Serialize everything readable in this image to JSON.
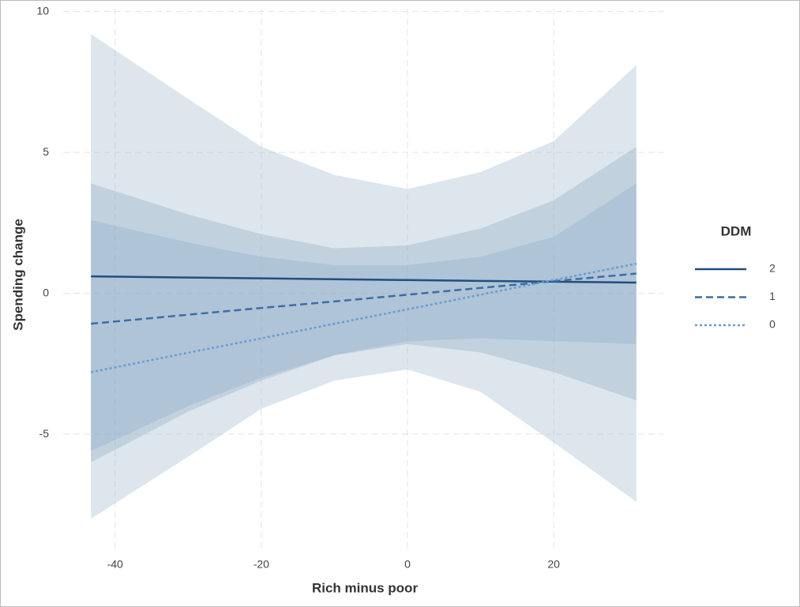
{
  "chart_data": {
    "type": "line",
    "x_label": "Rich minus poor",
    "y_label": "Spending change",
    "legend_title": "DDM",
    "legend_position": "right",
    "grid": true,
    "x": [
      -43.3,
      -30,
      -20,
      -10,
      0,
      10,
      20,
      31.3
    ],
    "xlim": [
      -47.1,
      35
    ],
    "ylim": [
      -9.2,
      10.1
    ],
    "xticks": [
      -40,
      -20,
      0,
      20
    ],
    "yticks": [
      -5,
      0,
      5,
      10
    ],
    "series": [
      {
        "name": "2",
        "color": "#1f4f80",
        "linetype": "solid",
        "ribbon_color": "#7fa6cc",
        "values": [
          0.6,
          0.56,
          0.53,
          0.5,
          0.47,
          0.44,
          0.41,
          0.38
        ],
        "upper": [
          2.6,
          1.8,
          1.3,
          1.0,
          1.0,
          1.3,
          2.0,
          3.9
        ],
        "lower": [
          -5.6,
          -4.0,
          -3.0,
          -2.2,
          -1.7,
          -1.6,
          -1.7,
          -1.8
        ]
      },
      {
        "name": "1",
        "color": "#3a6ea5",
        "linetype": "dashed",
        "ribbon_color": "#8aa3bf",
        "values": [
          -1.08,
          -0.76,
          -0.52,
          -0.29,
          -0.05,
          0.19,
          0.43,
          0.7
        ],
        "upper": [
          3.9,
          2.8,
          2.1,
          1.6,
          1.7,
          2.3,
          3.3,
          5.2
        ],
        "lower": [
          -6.0,
          -4.2,
          -3.1,
          -2.2,
          -1.8,
          -2.1,
          -2.8,
          -3.8
        ]
      },
      {
        "name": "0",
        "color": "#6a9bd0",
        "linetype": "dotted",
        "ribbon_color": "#9fb6cb",
        "values": [
          -2.8,
          -2.11,
          -1.6,
          -1.08,
          -0.57,
          -0.05,
          0.47,
          1.05
        ],
        "upper": [
          9.2,
          6.9,
          5.2,
          4.2,
          3.7,
          4.3,
          5.4,
          8.1
        ],
        "lower": [
          -8.0,
          -5.8,
          -4.1,
          -3.1,
          -2.7,
          -3.5,
          -5.3,
          -7.4
        ]
      }
    ]
  }
}
